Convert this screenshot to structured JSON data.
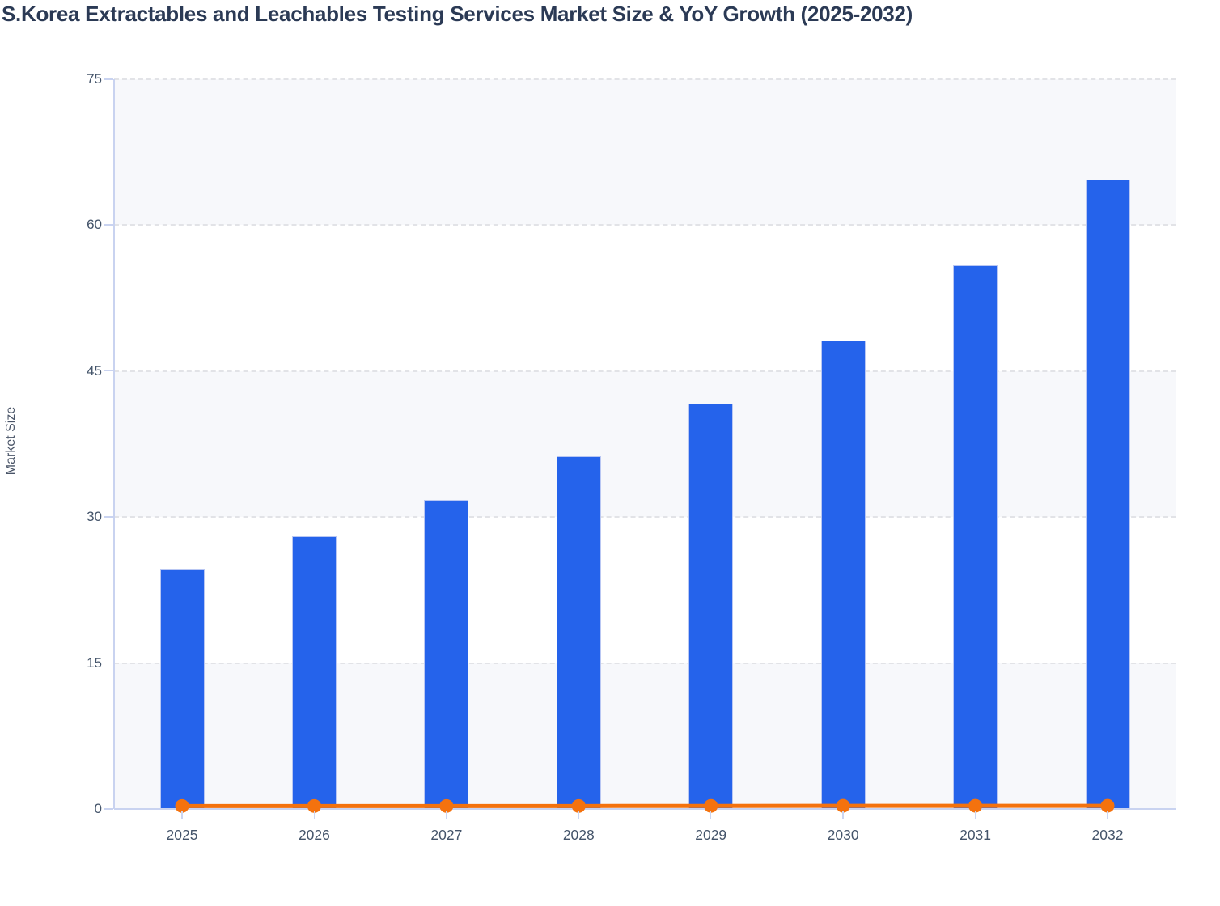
{
  "title": "S.Korea Extractables and Leachables Testing Services Market Size & YoY Growth (2025-2032)",
  "chart_data": {
    "type": "bar",
    "subtype": "bar-line-combo",
    "title": "S.Korea Extractables and Leachables Testing Services Market Size & YoY Growth (2025-2032)",
    "xlabel": "",
    "ylabel": "Market Size",
    "categories": [
      "2025",
      "2026",
      "2027",
      "2028",
      "2029",
      "2030",
      "2031",
      "2032"
    ],
    "series": [
      {
        "name": "Market Size",
        "type": "bar",
        "values": [
          24.5,
          27.9,
          31.7,
          36.2,
          41.6,
          48.1,
          55.8,
          64.6
        ]
      },
      {
        "name": "YoY Growth",
        "type": "line",
        "values": [
          0.14,
          0.14,
          0.14,
          0.14,
          0.15,
          0.16,
          0.16,
          0.16
        ]
      }
    ],
    "ylim": [
      0,
      75
    ],
    "yticks": [
      0,
      15,
      30,
      45,
      60,
      75
    ],
    "ytick_labels": [
      "0",
      "15",
      "30",
      "45",
      "60",
      "75"
    ],
    "grid": "horizontal-dashed",
    "legend_position": "none",
    "plot_background": "alternating-horizontal-bands"
  },
  "colors": {
    "bar_fill": "#2563eb",
    "bar_border": "#b9c7f3",
    "line": "#f4720e",
    "title_text": "#2b3a55",
    "axis_text": "#44546a",
    "axis_label_text": "#4a5568",
    "axis_line": "#c9d3f0",
    "gridline": "#e2e3e7",
    "band_light": "#f7f8fb",
    "band_white": "#ffffff",
    "background": "#ffffff"
  }
}
